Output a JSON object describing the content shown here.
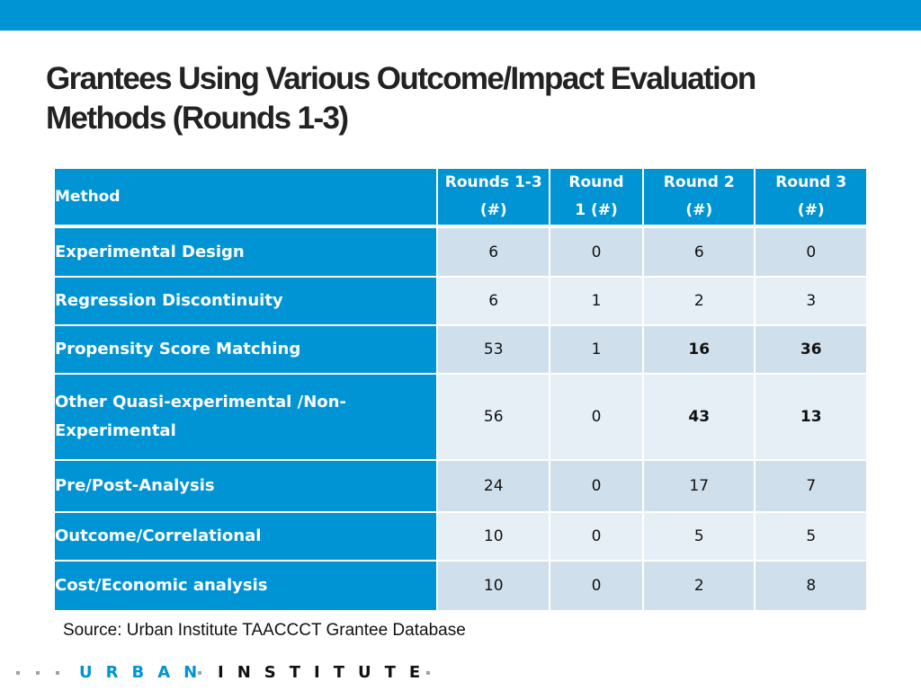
{
  "title": {
    "line1": "Grantees Using Various Outcome/Impact Evaluation",
    "line2": "Methods (Rounds 1-3)"
  },
  "table": {
    "headers": {
      "method": "Method",
      "rounds_1_3": [
        "Rounds 1-3",
        "(#)"
      ],
      "round_1": [
        "Round",
        "1 (#)"
      ],
      "round_2": [
        "Round 2",
        "(#)"
      ],
      "round_3": [
        "Round 3",
        "(#)"
      ]
    },
    "rows": [
      {
        "method": [
          "Experimental Design"
        ],
        "values": [
          "6",
          "0",
          "6",
          "0"
        ]
      },
      {
        "method": [
          "Regression Discontinuity"
        ],
        "values": [
          "6",
          "1",
          "2",
          "3"
        ]
      },
      {
        "method": [
          "Propensity Score Matching"
        ],
        "values": [
          "53",
          "1",
          "16",
          "36"
        ]
      },
      {
        "method": [
          "Other Quasi-experimental /Non-",
          "Experimental"
        ],
        "values": [
          "56",
          "0",
          "43",
          "13"
        ]
      },
      {
        "method": [
          "Pre/Post-Analysis"
        ],
        "values": [
          "24",
          "0",
          "17",
          "7"
        ]
      },
      {
        "method": [
          "Outcome/Correlational"
        ],
        "values": [
          "10",
          "0",
          "5",
          "5"
        ]
      },
      {
        "method": [
          "Cost/Economic analysis"
        ],
        "values": [
          "10",
          "0",
          "2",
          "8"
        ]
      }
    ]
  },
  "source": "Source: Urban Institute TAACCCT Grantee Database",
  "footer": {
    "logo_urban": "URBAN",
    "logo_institute": "INSTITUTE"
  },
  "colors": {
    "accent_blue": "#0094d4",
    "cell_band_dark": "#cfe0ec",
    "cell_band_light": "#e7eff6"
  }
}
